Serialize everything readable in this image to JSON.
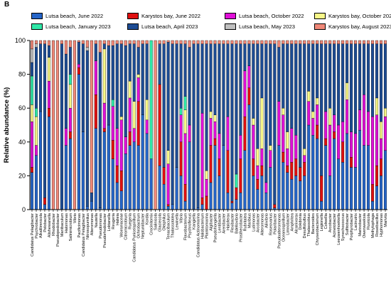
{
  "figure": {
    "panel_label": "B"
  },
  "chart_data": {
    "type": "bar",
    "stacked": true,
    "orientation": "vertical",
    "ylabel": "Relative abundance (%)",
    "ylim": [
      0,
      100
    ],
    "yticks": [
      0,
      20,
      40,
      60,
      80,
      100
    ],
    "legend_position": "top",
    "series": [
      {
        "name": "Lutsa beach, June 2022",
        "color": "#2565c8"
      },
      {
        "name": "Karystos bay, June 2022",
        "color": "#e01010"
      },
      {
        "name": "Lutsa beach, October 2022",
        "color": "#e010d8"
      },
      {
        "name": "Karystos bay, October 2022",
        "color": "#f8f888"
      },
      {
        "name": "Lutsa beach, January 2023",
        "color": "#30e8a8"
      },
      {
        "name": "Lutsa beach, April 2023",
        "color": "#1d4c94"
      },
      {
        "name": "Lutsa beach, May 2023",
        "color": "#c0c0c0"
      },
      {
        "name": "Karystos bay, August 2023",
        "color": "#f08878"
      }
    ],
    "categories": [
      "Candidatus Pelagibacter",
      "Psychrobacter",
      "Alkalilimnicola",
      "Pelobacter",
      "Alishewanella",
      "Rhodobacter",
      "Pseudopedobacter",
      "Mariibaculum",
      "Halomonas",
      "Salinimicrobium",
      "Vibrio",
      "Pacificimonas",
      "Candidatus Pelagibacter",
      "Nitrosopumilus",
      "Alteromonas",
      "Nautella",
      "Pseudomonas",
      "Pseudorhodobacter",
      "Loktanella",
      "Reugeria",
      "Halieia",
      "Woeseiaceae",
      "Citromicrobium",
      "Ruegeria",
      "Candidatus Puniceispirillum",
      "Ochrobactrum",
      "Neptuniibacter",
      "Kordia",
      "Crocinitomix",
      "Salinicola",
      "Glaciecola",
      "Oleiphilus",
      "Tenacibaculum",
      "Thalassotalea",
      "Lewinella",
      "Vibrio",
      "Flavobacterium",
      "Psychroflexus",
      "Kangiella",
      "Candidatus Actinomarina",
      "Halobacterium",
      "Planktomarina",
      "Algibacter",
      "Pseudohongiella",
      "Lentibacter",
      "Arenibacter",
      "Haloferax",
      "Flexibacter",
      "Bdellovibrio",
      "Prosthecobacter",
      "Rubritalea",
      "Maribius",
      "Lutimonas",
      "Arcobacter",
      "Alteromonas",
      "Aliivibrio",
      "Roseovarius",
      "Polaribacter",
      "Pseudoalteromonas",
      "Oceanospirillum",
      "Limnobacter",
      "Amphritea",
      "Alcanivorax",
      "Dokdonia",
      "Desulfobulbus",
      "Thalassobius",
      "Bacteroides",
      "Chryseobacterium",
      "Legionella",
      "Colwellia",
      "Arcobacter",
      "Acinetobacter",
      "Leeuwenhoekiella",
      "Synechococcus",
      "Sulfitobacter",
      "Porphyrobacter",
      "Lacinutrix",
      "Marinobacter",
      "Owenweeksia",
      "Fluviicola",
      "Methylophaga",
      "Roseibacillus",
      "Hyphomonas",
      "Marivita"
    ],
    "values": [
      [
        22,
        3,
        27,
        10,
        17,
        8,
        8,
        5
      ],
      [
        32,
        0,
        6,
        17,
        5,
        36,
        2,
        2
      ],
      [
        58,
        0,
        0,
        0,
        0,
        40,
        0,
        2
      ],
      [
        3,
        4,
        0,
        0,
        0,
        91,
        0,
        2
      ],
      [
        55,
        5,
        16,
        14,
        0,
        7,
        0,
        3
      ],
      [
        0,
        0,
        0,
        0,
        0,
        0,
        0,
        100
      ],
      [
        0,
        0,
        0,
        0,
        0,
        0,
        0,
        100
      ],
      [
        0,
        0,
        0,
        0,
        0,
        98,
        0,
        2
      ],
      [
        38,
        0,
        10,
        0,
        0,
        44,
        0,
        8
      ],
      [
        42,
        4,
        14,
        14,
        6,
        16,
        0,
        4
      ],
      [
        0,
        0,
        0,
        0,
        0,
        0,
        0,
        100
      ],
      [
        80,
        4,
        2,
        0,
        0,
        13,
        0,
        1
      ],
      [
        46,
        0,
        0,
        0,
        0,
        52,
        0,
        2
      ],
      [
        2,
        0,
        0,
        0,
        0,
        92,
        2,
        4
      ],
      [
        5,
        0,
        0,
        0,
        0,
        5,
        0,
        90
      ],
      [
        48,
        20,
        20,
        0,
        0,
        10,
        0,
        2
      ],
      [
        1,
        0,
        0,
        0,
        0,
        92,
        0,
        7
      ],
      [
        46,
        2,
        15,
        32,
        0,
        3,
        0,
        2
      ],
      [
        50,
        0,
        0,
        0,
        0,
        47,
        0,
        3
      ],
      [
        30,
        11,
        20,
        0,
        4,
        32,
        0,
        3
      ],
      [
        16,
        10,
        22,
        0,
        0,
        50,
        0,
        2
      ],
      [
        11,
        12,
        30,
        2,
        0,
        43,
        0,
        2
      ],
      [
        33,
        0,
        10,
        0,
        0,
        54,
        0,
        3
      ],
      [
        38,
        8,
        20,
        10,
        0,
        22,
        0,
        2
      ],
      [
        40,
        0,
        8,
        16,
        0,
        34,
        0,
        2
      ],
      [
        38,
        26,
        14,
        2,
        0,
        16,
        0,
        4
      ],
      [
        56,
        0,
        0,
        0,
        0,
        42,
        0,
        2
      ],
      [
        45,
        0,
        8,
        12,
        0,
        33,
        0,
        2
      ],
      [
        30,
        0,
        0,
        0,
        70,
        0,
        0,
        0
      ],
      [
        0,
        0,
        0,
        0,
        0,
        0,
        0,
        100
      ],
      [
        26,
        48,
        0,
        0,
        0,
        24,
        0,
        2
      ],
      [
        15,
        10,
        0,
        0,
        0,
        73,
        0,
        2
      ],
      [
        2,
        1,
        24,
        8,
        0,
        64,
        0,
        1
      ],
      [
        3,
        0,
        0,
        0,
        0,
        95,
        0,
        2
      ],
      [
        25,
        0,
        0,
        0,
        0,
        73,
        0,
        2
      ],
      [
        20,
        20,
        16,
        0,
        4,
        38,
        0,
        2
      ],
      [
        5,
        10,
        30,
        14,
        8,
        31,
        0,
        2
      ],
      [
        40,
        0,
        10,
        0,
        0,
        46,
        0,
        4
      ],
      [
        0,
        0,
        0,
        0,
        0,
        98,
        0,
        2
      ],
      [
        1,
        0,
        0,
        0,
        0,
        97,
        0,
        2
      ],
      [
        3,
        4,
        50,
        0,
        0,
        41,
        0,
        2
      ],
      [
        0,
        8,
        10,
        5,
        0,
        75,
        0,
        2
      ],
      [
        16,
        22,
        16,
        4,
        0,
        40,
        0,
        2
      ],
      [
        38,
        4,
        10,
        4,
        0,
        42,
        0,
        2
      ],
      [
        20,
        10,
        15,
        0,
        0,
        53,
        0,
        2
      ],
      [
        38,
        0,
        0,
        0,
        0,
        60,
        0,
        2
      ],
      [
        10,
        25,
        20,
        0,
        0,
        43,
        0,
        2
      ],
      [
        4,
        1,
        0,
        0,
        0,
        93,
        0,
        2
      ],
      [
        6,
        7,
        0,
        0,
        8,
        77,
        0,
        2
      ],
      [
        10,
        20,
        14,
        0,
        0,
        54,
        0,
        2
      ],
      [
        35,
        20,
        27,
        0,
        0,
        16,
        0,
        2
      ],
      [
        62,
        10,
        13,
        0,
        0,
        13,
        0,
        2
      ],
      [
        20,
        10,
        20,
        4,
        0,
        44,
        0,
        2
      ],
      [
        12,
        6,
        8,
        10,
        0,
        62,
        0,
        2
      ],
      [
        20,
        6,
        10,
        30,
        0,
        32,
        0,
        2
      ],
      [
        10,
        0,
        6,
        0,
        0,
        82,
        0,
        2
      ],
      [
        25,
        0,
        10,
        3,
        0,
        60,
        0,
        2
      ],
      [
        1,
        2,
        0,
        0,
        0,
        95,
        0,
        2
      ],
      [
        38,
        0,
        26,
        0,
        0,
        32,
        0,
        4
      ],
      [
        28,
        6,
        22,
        4,
        0,
        38,
        0,
        2
      ],
      [
        22,
        4,
        10,
        10,
        0,
        52,
        0,
        2
      ],
      [
        18,
        10,
        20,
        0,
        0,
        50,
        0,
        2
      ],
      [
        20,
        10,
        14,
        0,
        0,
        54,
        0,
        2
      ],
      [
        17,
        8,
        0,
        0,
        0,
        73,
        0,
        2
      ],
      [
        20,
        8,
        4,
        4,
        0,
        62,
        0,
        2
      ],
      [
        50,
        0,
        14,
        6,
        0,
        28,
        0,
        2
      ],
      [
        44,
        0,
        10,
        4,
        0,
        40,
        0,
        2
      ],
      [
        42,
        8,
        12,
        4,
        0,
        32,
        0,
        2
      ],
      [
        5,
        15,
        0,
        0,
        0,
        78,
        0,
        2
      ],
      [
        38,
        4,
        16,
        0,
        0,
        40,
        0,
        2
      ],
      [
        20,
        0,
        30,
        10,
        0,
        38,
        0,
        2
      ],
      [
        42,
        4,
        10,
        0,
        0,
        42,
        0,
        2
      ],
      [
        30,
        0,
        20,
        0,
        0,
        48,
        0,
        2
      ],
      [
        28,
        12,
        12,
        0,
        0,
        46,
        0,
        2
      ],
      [
        45,
        0,
        20,
        10,
        0,
        23,
        0,
        2
      ],
      [
        25,
        6,
        15,
        0,
        0,
        52,
        0,
        2
      ],
      [
        25,
        0,
        20,
        0,
        0,
        53,
        0,
        2
      ],
      [
        47,
        0,
        12,
        0,
        0,
        39,
        0,
        2
      ],
      [
        38,
        0,
        30,
        0,
        0,
        30,
        0,
        2
      ],
      [
        38,
        0,
        20,
        0,
        0,
        40,
        0,
        2
      ],
      [
        5,
        10,
        40,
        0,
        0,
        43,
        0,
        2
      ],
      [
        14,
        12,
        30,
        10,
        0,
        32,
        0,
        2
      ],
      [
        20,
        10,
        12,
        10,
        0,
        46,
        0,
        2
      ],
      [
        35,
        0,
        20,
        5,
        0,
        38,
        0,
        2
      ]
    ]
  }
}
